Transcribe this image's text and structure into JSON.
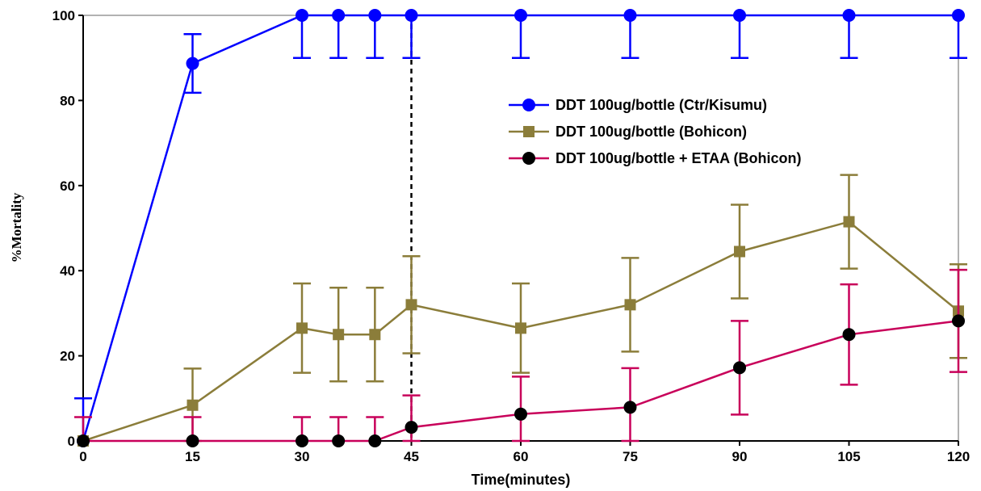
{
  "chart_data": {
    "type": "line",
    "xlabel": "Time(minutes)",
    "ylabel": "%Mortality",
    "xlim": [
      0,
      120
    ],
    "ylim": [
      0,
      100
    ],
    "xticks": [
      "0",
      "15",
      "30",
      "45",
      "60",
      "75",
      "90",
      "105",
      "120"
    ],
    "yticks": [
      "0",
      "20",
      "40",
      "60",
      "80",
      "100"
    ],
    "grid": false,
    "legend_position": "right",
    "reference_line": {
      "x": 45,
      "style": "dashed"
    },
    "series": [
      {
        "name": "DDT 100ug/bottle (Ctr/Kisumu)",
        "color": "#0000ff",
        "marker": "circle",
        "x": [
          0,
          15,
          30,
          35,
          40,
          45,
          60,
          75,
          90,
          105,
          120
        ],
        "y": [
          0,
          88.7,
          100,
          100,
          100,
          100,
          100,
          100,
          100,
          100,
          100
        ],
        "error": [
          10,
          6.9,
          10,
          10,
          10,
          10,
          10,
          10,
          10,
          10,
          10
        ],
        "error_bar_side": [
          "upper",
          "both",
          "lower",
          "lower",
          "lower",
          "lower",
          "lower",
          "lower",
          "lower",
          "lower",
          "lower"
        ]
      },
      {
        "name": "DDT 100ug/bottle (Bohicon)",
        "color": "#8b7d3a",
        "marker": "square",
        "x": [
          0,
          15,
          30,
          35,
          40,
          45,
          60,
          75,
          90,
          105,
          120
        ],
        "y": [
          0,
          8.4,
          26.5,
          25,
          25,
          32,
          26.5,
          32,
          44.5,
          51.5,
          30.5
        ],
        "error": [
          0,
          8.6,
          10.5,
          11,
          11,
          11.4,
          10.5,
          11,
          11,
          11,
          11
        ],
        "error_bar_side": [
          "both",
          "both",
          "both",
          "both",
          "both",
          "both",
          "both",
          "both",
          "both",
          "both",
          "both"
        ]
      },
      {
        "name": "DDT 100ug/bottle + ETAA (Bohicon)",
        "color": "#c8005a",
        "marker": "circle",
        "x": [
          0,
          15,
          30,
          35,
          40,
          45,
          60,
          75,
          90,
          105,
          120
        ],
        "y": [
          0,
          0,
          0,
          0,
          0,
          3.2,
          6.3,
          7.9,
          17.2,
          25,
          28.2
        ],
        "error": [
          5.6,
          5.6,
          5.6,
          5.6,
          5.6,
          7.5,
          8.8,
          9.2,
          11,
          11.8,
          12
        ],
        "error_bar_side": [
          "upper",
          "upper",
          "upper",
          "upper",
          "upper",
          "both",
          "both",
          "both",
          "both",
          "both",
          "both"
        ]
      }
    ]
  }
}
